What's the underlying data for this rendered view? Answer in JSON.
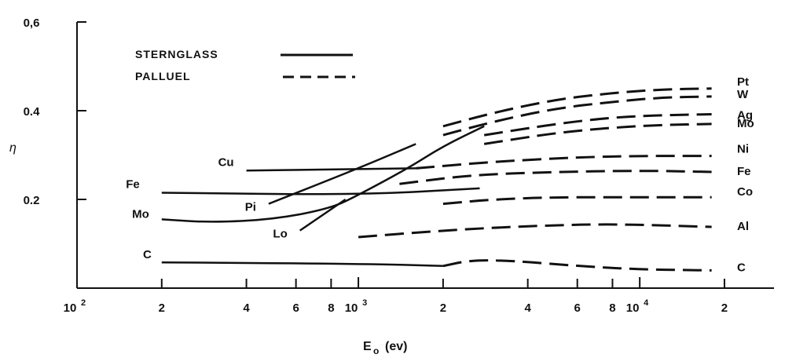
{
  "chart_data": {
    "type": "line",
    "title": "",
    "ylabel": "η",
    "xlabel": "E",
    "xlabel_sub": "o",
    "xlabel_unit": "(ev)",
    "x_scale": "log",
    "xlim": [
      100,
      30000
    ],
    "ylim": [
      0,
      0.6
    ],
    "grid": false,
    "x_ticks": [
      {
        "value": 100,
        "label": "10",
        "sup": "2",
        "major": true
      },
      {
        "value": 200,
        "label": "2"
      },
      {
        "value": 400,
        "label": "4"
      },
      {
        "value": 600,
        "label": "6"
      },
      {
        "value": 800,
        "label": "8"
      },
      {
        "value": 1000,
        "label": "10",
        "sup": "3",
        "major": true
      },
      {
        "value": 2000,
        "label": "2"
      },
      {
        "value": 4000,
        "label": "4"
      },
      {
        "value": 6000,
        "label": "6"
      },
      {
        "value": 8000,
        "label": "8"
      },
      {
        "value": 10000,
        "label": "10",
        "sup": "4",
        "major": true
      },
      {
        "value": 20000,
        "label": "2"
      }
    ],
    "y_ticks": [
      {
        "value": 0.2,
        "label": "0.2"
      },
      {
        "value": 0.4,
        "label": "0.4"
      },
      {
        "value": 0.6,
        "label": "0,6"
      }
    ],
    "legend": {
      "placement": "top-left",
      "entries": [
        {
          "label": "STERNGLASS",
          "style": "solid"
        },
        {
          "label": "PALLUEL",
          "style": "dashed"
        }
      ]
    },
    "series": [
      {
        "name": "Cu",
        "group": "STERNGLASS",
        "label_pos": "left",
        "points": [
          [
            400,
            0.265
          ],
          [
            1600,
            0.27
          ]
        ]
      },
      {
        "name": "Fe",
        "group": "STERNGLASS",
        "label_pos": "left",
        "points": [
          [
            200,
            0.215
          ],
          [
            1000,
            0.21
          ],
          [
            2700,
            0.225
          ]
        ]
      },
      {
        "name": "Mo",
        "group": "STERNGLASS",
        "label_pos": "left",
        "points": [
          [
            200,
            0.155
          ],
          [
            300,
            0.148
          ],
          [
            500,
            0.155
          ],
          [
            800,
            0.18
          ],
          [
            1000,
            0.21
          ],
          [
            1500,
            0.27
          ],
          [
            2000,
            0.32
          ],
          [
            2800,
            0.365
          ]
        ]
      },
      {
        "name": "Pi",
        "group": "STERNGLASS",
        "label_pos": "left",
        "points": [
          [
            480,
            0.19
          ],
          [
            1000,
            0.27
          ],
          [
            1600,
            0.325
          ]
        ]
      },
      {
        "name": "Lo",
        "group": "STERNGLASS",
        "label_pos": "left",
        "points": [
          [
            620,
            0.13
          ],
          [
            900,
            0.2
          ]
        ]
      },
      {
        "name": "C",
        "group": "STERNGLASS",
        "label_pos": "left",
        "points": [
          [
            200,
            0.058
          ],
          [
            1000,
            0.055
          ],
          [
            2000,
            0.05
          ]
        ]
      },
      {
        "name": "Pt",
        "group": "PALLUEL",
        "label_pos": "right",
        "points": [
          [
            2000,
            0.365
          ],
          [
            3000,
            0.395
          ],
          [
            5000,
            0.425
          ],
          [
            8000,
            0.44
          ],
          [
            12000,
            0.448
          ],
          [
            18000,
            0.45
          ]
        ]
      },
      {
        "name": "W",
        "group": "PALLUEL",
        "label_pos": "right",
        "points": [
          [
            2000,
            0.345
          ],
          [
            3000,
            0.375
          ],
          [
            5000,
            0.405
          ],
          [
            8000,
            0.42
          ],
          [
            12000,
            0.43
          ],
          [
            18000,
            0.432
          ]
        ]
      },
      {
        "name": "Ag",
        "group": "PALLUEL",
        "label_pos": "right",
        "points": [
          [
            2800,
            0.345
          ],
          [
            5000,
            0.37
          ],
          [
            8000,
            0.385
          ],
          [
            12000,
            0.39
          ],
          [
            18000,
            0.392
          ]
        ]
      },
      {
        "name": "Mo",
        "group": "PALLUEL",
        "label_pos": "right",
        "points": [
          [
            2800,
            0.325
          ],
          [
            5000,
            0.35
          ],
          [
            8000,
            0.362
          ],
          [
            12000,
            0.368
          ],
          [
            18000,
            0.37
          ]
        ]
      },
      {
        "name": "Ni",
        "group": "PALLUEL",
        "label_pos": "right",
        "points": [
          [
            1600,
            0.27
          ],
          [
            3000,
            0.285
          ],
          [
            6000,
            0.295
          ],
          [
            10000,
            0.298
          ],
          [
            18000,
            0.298
          ]
        ]
      },
      {
        "name": "Fe",
        "group": "PALLUEL",
        "label_pos": "right",
        "points": [
          [
            1400,
            0.235
          ],
          [
            2500,
            0.255
          ],
          [
            5000,
            0.262
          ],
          [
            10000,
            0.265
          ],
          [
            18000,
            0.262
          ]
        ]
      },
      {
        "name": "Co",
        "group": "PALLUEL",
        "label_pos": "right",
        "points": [
          [
            2000,
            0.19
          ],
          [
            3000,
            0.2
          ],
          [
            5000,
            0.205
          ],
          [
            10000,
            0.205
          ],
          [
            18000,
            0.205
          ]
        ]
      },
      {
        "name": "Al",
        "group": "PALLUEL",
        "label_pos": "right",
        "points": [
          [
            1000,
            0.115
          ],
          [
            2000,
            0.13
          ],
          [
            4000,
            0.14
          ],
          [
            8000,
            0.145
          ],
          [
            18000,
            0.138
          ]
        ]
      },
      {
        "name": "C",
        "group": "PALLUEL",
        "label_pos": "right",
        "points": [
          [
            2000,
            0.05
          ],
          [
            2500,
            0.063
          ],
          [
            3500,
            0.062
          ],
          [
            6000,
            0.05
          ],
          [
            10000,
            0.042
          ],
          [
            18000,
            0.04
          ]
        ]
      }
    ]
  }
}
